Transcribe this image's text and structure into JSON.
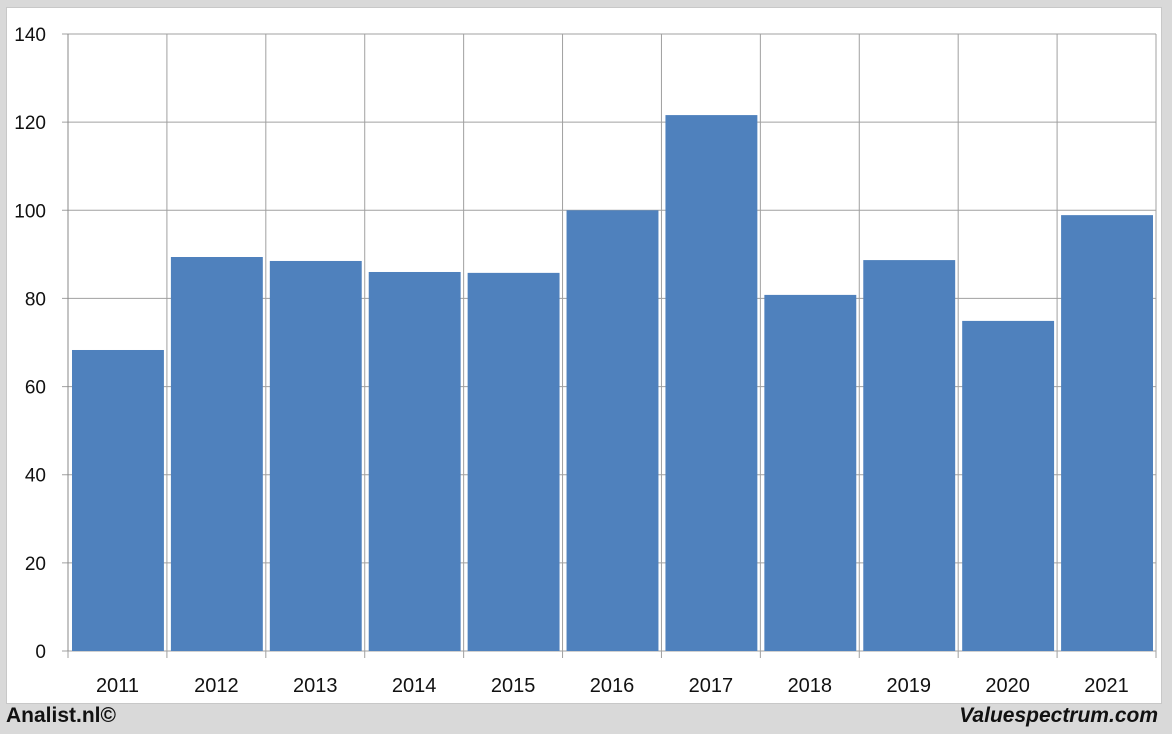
{
  "chart_data": {
    "type": "bar",
    "categories": [
      "2011",
      "2012",
      "2013",
      "2014",
      "2015",
      "2016",
      "2017",
      "2018",
      "2019",
      "2020",
      "2021"
    ],
    "values": [
      68.3,
      89.4,
      88.5,
      86.0,
      85.8,
      100.0,
      121.6,
      80.8,
      88.7,
      74.9,
      98.9
    ],
    "ylim": [
      0,
      140
    ],
    "yticks": [
      0,
      20,
      40,
      60,
      80,
      100,
      120,
      140
    ],
    "grid": true,
    "bar_color": "#4f81bd",
    "title": "",
    "xlabel": "",
    "ylabel": ""
  },
  "footer": {
    "left": "Analist.nl©",
    "right": "Valuespectrum.com"
  }
}
